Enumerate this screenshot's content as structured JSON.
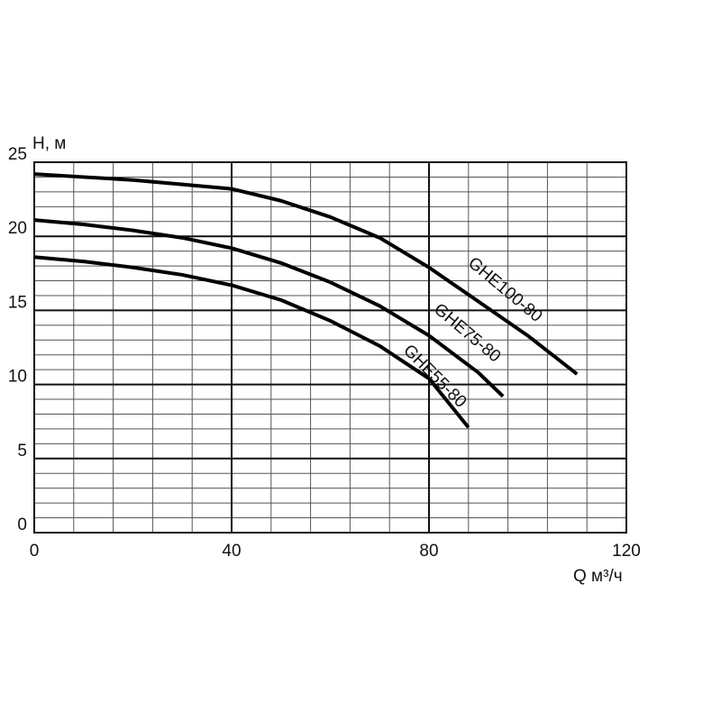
{
  "chart_data": {
    "type": "line",
    "y_label": "H, м",
    "x_label": "Q м³/ч",
    "xlim": [
      0,
      120
    ],
    "ylim": [
      0,
      25
    ],
    "xticks": [
      0,
      40,
      80,
      120
    ],
    "yticks": [
      0,
      5,
      10,
      15,
      20,
      25
    ],
    "grid": true,
    "minor_grid": {
      "x": 8,
      "y": 1
    },
    "series": [
      {
        "name": "GHE100-80",
        "color": "#000000",
        "x": [
          0,
          10,
          20,
          30,
          40,
          50,
          60,
          70,
          80,
          90,
          100,
          110
        ],
        "values": [
          24.2,
          24.0,
          23.8,
          23.5,
          23.2,
          22.4,
          21.3,
          19.9,
          17.9,
          15.6,
          13.3,
          10.7
        ]
      },
      {
        "name": "GHE75-80",
        "color": "#000000",
        "x": [
          0,
          10,
          20,
          30,
          40,
          50,
          60,
          70,
          80,
          90,
          95
        ],
        "values": [
          21.1,
          20.8,
          20.4,
          19.9,
          19.2,
          18.2,
          16.9,
          15.3,
          13.3,
          10.8,
          9.2
        ]
      },
      {
        "name": "GHE55-80",
        "color": "#000000",
        "x": [
          0,
          10,
          20,
          30,
          40,
          50,
          60,
          70,
          80,
          88
        ],
        "values": [
          18.6,
          18.3,
          17.9,
          17.4,
          16.7,
          15.7,
          14.3,
          12.6,
          10.4,
          7.1
        ]
      }
    ]
  }
}
